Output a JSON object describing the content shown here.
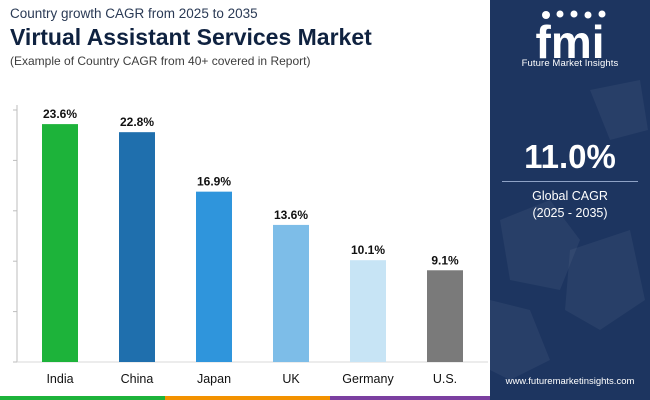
{
  "header": {
    "subtitle": "Country growth CAGR from 2025 to 2035",
    "title": "Virtual Assistant Services Market",
    "note": "(Example of Country CAGR from 40+ covered in Report)"
  },
  "sidebar": {
    "logo_text": "fmi",
    "logo_subtitle": "Future Market Insights",
    "kpi_value": "11.0%",
    "kpi_label_line1": "Global CAGR",
    "kpi_label_line2": "(2025 - 2035)",
    "website": "www.futuremarketinsights.com",
    "bg_color": "#1d3560"
  },
  "chart_data": {
    "type": "bar",
    "categories": [
      "India",
      "China",
      "Japan",
      "UK",
      "Germany",
      "U.S."
    ],
    "values": [
      23.6,
      22.8,
      16.9,
      13.6,
      10.1,
      9.1
    ],
    "value_labels": [
      "23.6%",
      "22.8%",
      "16.9%",
      "13.6%",
      "10.1%",
      "9.1%"
    ],
    "colors": [
      "#1db33a",
      "#1f6fad",
      "#2f95dc",
      "#7dbde8",
      "#c7e4f5",
      "#7a7a7a"
    ],
    "ylim": [
      0,
      25
    ],
    "grid": "horizontal ticks only",
    "xlabel": "",
    "ylabel": ""
  },
  "footer_colors": [
    "#1db33a",
    "#f39200",
    "#7b3fa0",
    "#1d3560"
  ]
}
